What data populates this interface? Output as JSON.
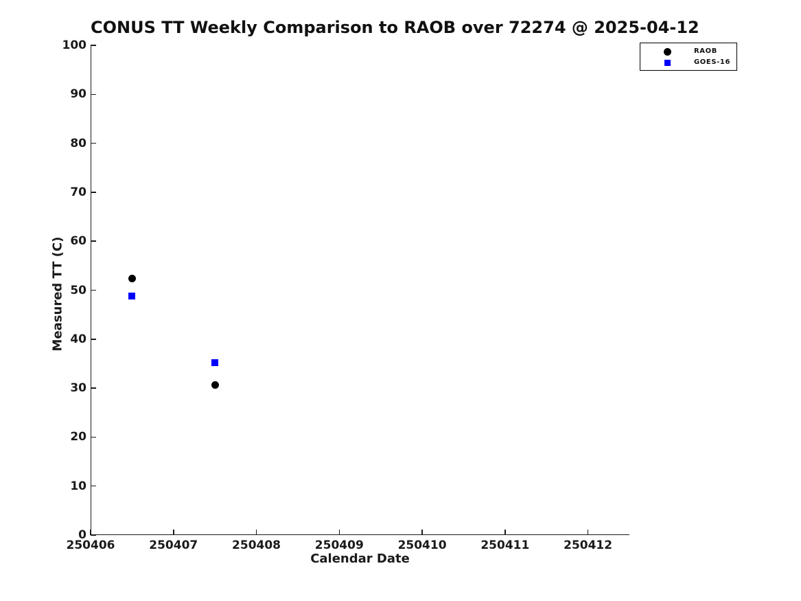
{
  "title": "CONUS TT Weekly Comparison to RAOB over 72274 @ 2025-04-12",
  "colors": {
    "raob_marker": "#000000",
    "goes16_marker": "#0000ff",
    "axis": "#1a1a1a",
    "background": "#ffffff"
  },
  "chart_data": {
    "type": "scatter",
    "title": "CONUS TT Weekly Comparison to RAOB over 72274 @ 2025-04-12",
    "xlabel": "Calendar Date",
    "ylabel": "Measured TT (C)",
    "xlim": [
      250406,
      250412.5
    ],
    "ylim": [
      0,
      100
    ],
    "x_ticks": [
      "250406",
      "250407",
      "250408",
      "250409",
      "250410",
      "250411",
      "250412"
    ],
    "y_ticks": [
      0,
      10,
      20,
      30,
      40,
      50,
      60,
      70,
      80,
      90,
      100
    ],
    "grid": false,
    "legend_position": "top-right, outside plot",
    "series": [
      {
        "name": "RAOB",
        "marker": "circle",
        "color": "#000000",
        "points": [
          {
            "x": 250406.5,
            "y": 52.4
          },
          {
            "x": 250407.5,
            "y": 30.7
          }
        ]
      },
      {
        "name": "GOES-16",
        "marker": "square",
        "color": "#0000ff",
        "points": [
          {
            "x": 250406.5,
            "y": 48.8
          },
          {
            "x": 250407.5,
            "y": 35.2
          }
        ]
      }
    ]
  }
}
